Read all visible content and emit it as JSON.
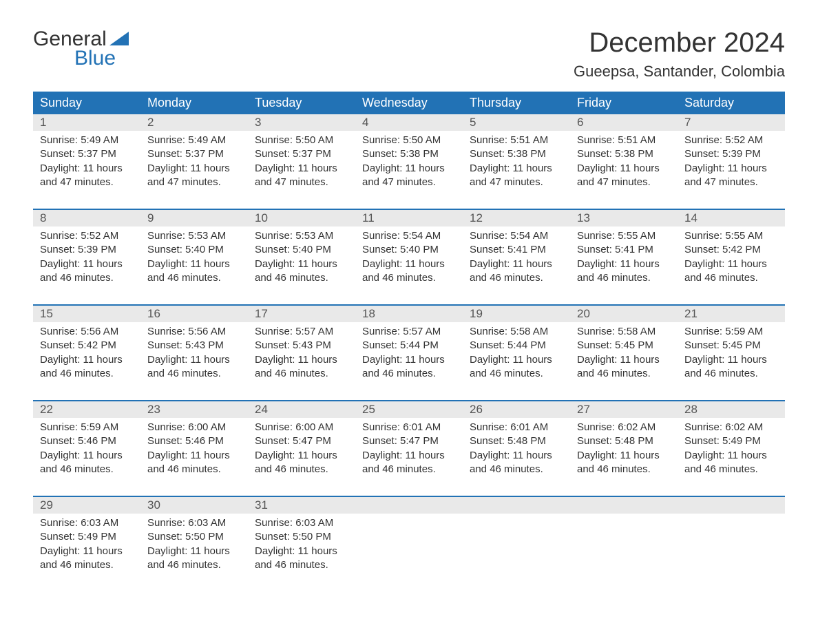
{
  "colors": {
    "brand_blue": "#2272b5",
    "header_text": "#ffffff",
    "date_bg": "#e9e9e9",
    "body_text": "#333333",
    "muted_text": "#555555",
    "page_bg": "#ffffff",
    "week_border": "#2272b5"
  },
  "logo": {
    "line1": "General",
    "line2": "Blue"
  },
  "title": "December 2024",
  "location": "Gueepsa, Santander, Colombia",
  "day_names": [
    "Sunday",
    "Monday",
    "Tuesday",
    "Wednesday",
    "Thursday",
    "Friday",
    "Saturday"
  ],
  "weeks": [
    {
      "days": [
        {
          "date": "1",
          "sunrise": "Sunrise: 5:49 AM",
          "sunset": "Sunset: 5:37 PM",
          "daylight1": "Daylight: 11 hours",
          "daylight2": "and 47 minutes."
        },
        {
          "date": "2",
          "sunrise": "Sunrise: 5:49 AM",
          "sunset": "Sunset: 5:37 PM",
          "daylight1": "Daylight: 11 hours",
          "daylight2": "and 47 minutes."
        },
        {
          "date": "3",
          "sunrise": "Sunrise: 5:50 AM",
          "sunset": "Sunset: 5:37 PM",
          "daylight1": "Daylight: 11 hours",
          "daylight2": "and 47 minutes."
        },
        {
          "date": "4",
          "sunrise": "Sunrise: 5:50 AM",
          "sunset": "Sunset: 5:38 PM",
          "daylight1": "Daylight: 11 hours",
          "daylight2": "and 47 minutes."
        },
        {
          "date": "5",
          "sunrise": "Sunrise: 5:51 AM",
          "sunset": "Sunset: 5:38 PM",
          "daylight1": "Daylight: 11 hours",
          "daylight2": "and 47 minutes."
        },
        {
          "date": "6",
          "sunrise": "Sunrise: 5:51 AM",
          "sunset": "Sunset: 5:38 PM",
          "daylight1": "Daylight: 11 hours",
          "daylight2": "and 47 minutes."
        },
        {
          "date": "7",
          "sunrise": "Sunrise: 5:52 AM",
          "sunset": "Sunset: 5:39 PM",
          "daylight1": "Daylight: 11 hours",
          "daylight2": "and 47 minutes."
        }
      ]
    },
    {
      "days": [
        {
          "date": "8",
          "sunrise": "Sunrise: 5:52 AM",
          "sunset": "Sunset: 5:39 PM",
          "daylight1": "Daylight: 11 hours",
          "daylight2": "and 46 minutes."
        },
        {
          "date": "9",
          "sunrise": "Sunrise: 5:53 AM",
          "sunset": "Sunset: 5:40 PM",
          "daylight1": "Daylight: 11 hours",
          "daylight2": "and 46 minutes."
        },
        {
          "date": "10",
          "sunrise": "Sunrise: 5:53 AM",
          "sunset": "Sunset: 5:40 PM",
          "daylight1": "Daylight: 11 hours",
          "daylight2": "and 46 minutes."
        },
        {
          "date": "11",
          "sunrise": "Sunrise: 5:54 AM",
          "sunset": "Sunset: 5:40 PM",
          "daylight1": "Daylight: 11 hours",
          "daylight2": "and 46 minutes."
        },
        {
          "date": "12",
          "sunrise": "Sunrise: 5:54 AM",
          "sunset": "Sunset: 5:41 PM",
          "daylight1": "Daylight: 11 hours",
          "daylight2": "and 46 minutes."
        },
        {
          "date": "13",
          "sunrise": "Sunrise: 5:55 AM",
          "sunset": "Sunset: 5:41 PM",
          "daylight1": "Daylight: 11 hours",
          "daylight2": "and 46 minutes."
        },
        {
          "date": "14",
          "sunrise": "Sunrise: 5:55 AM",
          "sunset": "Sunset: 5:42 PM",
          "daylight1": "Daylight: 11 hours",
          "daylight2": "and 46 minutes."
        }
      ]
    },
    {
      "days": [
        {
          "date": "15",
          "sunrise": "Sunrise: 5:56 AM",
          "sunset": "Sunset: 5:42 PM",
          "daylight1": "Daylight: 11 hours",
          "daylight2": "and 46 minutes."
        },
        {
          "date": "16",
          "sunrise": "Sunrise: 5:56 AM",
          "sunset": "Sunset: 5:43 PM",
          "daylight1": "Daylight: 11 hours",
          "daylight2": "and 46 minutes."
        },
        {
          "date": "17",
          "sunrise": "Sunrise: 5:57 AM",
          "sunset": "Sunset: 5:43 PM",
          "daylight1": "Daylight: 11 hours",
          "daylight2": "and 46 minutes."
        },
        {
          "date": "18",
          "sunrise": "Sunrise: 5:57 AM",
          "sunset": "Sunset: 5:44 PM",
          "daylight1": "Daylight: 11 hours",
          "daylight2": "and 46 minutes."
        },
        {
          "date": "19",
          "sunrise": "Sunrise: 5:58 AM",
          "sunset": "Sunset: 5:44 PM",
          "daylight1": "Daylight: 11 hours",
          "daylight2": "and 46 minutes."
        },
        {
          "date": "20",
          "sunrise": "Sunrise: 5:58 AM",
          "sunset": "Sunset: 5:45 PM",
          "daylight1": "Daylight: 11 hours",
          "daylight2": "and 46 minutes."
        },
        {
          "date": "21",
          "sunrise": "Sunrise: 5:59 AM",
          "sunset": "Sunset: 5:45 PM",
          "daylight1": "Daylight: 11 hours",
          "daylight2": "and 46 minutes."
        }
      ]
    },
    {
      "days": [
        {
          "date": "22",
          "sunrise": "Sunrise: 5:59 AM",
          "sunset": "Sunset: 5:46 PM",
          "daylight1": "Daylight: 11 hours",
          "daylight2": "and 46 minutes."
        },
        {
          "date": "23",
          "sunrise": "Sunrise: 6:00 AM",
          "sunset": "Sunset: 5:46 PM",
          "daylight1": "Daylight: 11 hours",
          "daylight2": "and 46 minutes."
        },
        {
          "date": "24",
          "sunrise": "Sunrise: 6:00 AM",
          "sunset": "Sunset: 5:47 PM",
          "daylight1": "Daylight: 11 hours",
          "daylight2": "and 46 minutes."
        },
        {
          "date": "25",
          "sunrise": "Sunrise: 6:01 AM",
          "sunset": "Sunset: 5:47 PM",
          "daylight1": "Daylight: 11 hours",
          "daylight2": "and 46 minutes."
        },
        {
          "date": "26",
          "sunrise": "Sunrise: 6:01 AM",
          "sunset": "Sunset: 5:48 PM",
          "daylight1": "Daylight: 11 hours",
          "daylight2": "and 46 minutes."
        },
        {
          "date": "27",
          "sunrise": "Sunrise: 6:02 AM",
          "sunset": "Sunset: 5:48 PM",
          "daylight1": "Daylight: 11 hours",
          "daylight2": "and 46 minutes."
        },
        {
          "date": "28",
          "sunrise": "Sunrise: 6:02 AM",
          "sunset": "Sunset: 5:49 PM",
          "daylight1": "Daylight: 11 hours",
          "daylight2": "and 46 minutes."
        }
      ]
    },
    {
      "days": [
        {
          "date": "29",
          "sunrise": "Sunrise: 6:03 AM",
          "sunset": "Sunset: 5:49 PM",
          "daylight1": "Daylight: 11 hours",
          "daylight2": "and 46 minutes."
        },
        {
          "date": "30",
          "sunrise": "Sunrise: 6:03 AM",
          "sunset": "Sunset: 5:50 PM",
          "daylight1": "Daylight: 11 hours",
          "daylight2": "and 46 minutes."
        },
        {
          "date": "31",
          "sunrise": "Sunrise: 6:03 AM",
          "sunset": "Sunset: 5:50 PM",
          "daylight1": "Daylight: 11 hours",
          "daylight2": "and 46 minutes."
        },
        {
          "date": "",
          "sunrise": "",
          "sunset": "",
          "daylight1": "",
          "daylight2": ""
        },
        {
          "date": "",
          "sunrise": "",
          "sunset": "",
          "daylight1": "",
          "daylight2": ""
        },
        {
          "date": "",
          "sunrise": "",
          "sunset": "",
          "daylight1": "",
          "daylight2": ""
        },
        {
          "date": "",
          "sunrise": "",
          "sunset": "",
          "daylight1": "",
          "daylight2": ""
        }
      ]
    }
  ]
}
